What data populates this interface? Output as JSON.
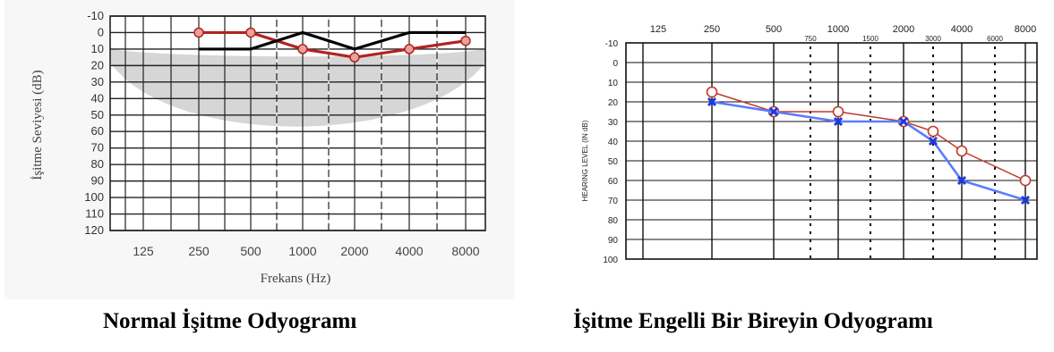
{
  "captions": {
    "left": "Normal İşitme Odyogramı",
    "right": "İşitme Engelli Bir Bireyin Odyogramı"
  },
  "chart_data": [
    {
      "type": "line",
      "title": "",
      "xlabel": "Frekans (Hz)",
      "ylabel": "İşitme Seviyesi (dB)",
      "x_ticks": [
        "125",
        "250",
        "500",
        "1000",
        "2000",
        "4000",
        "8000"
      ],
      "y_ticks": [
        "-10",
        "0",
        "10",
        "20",
        "30",
        "40",
        "50",
        "60",
        "70",
        "80",
        "90",
        "100",
        "110",
        "120"
      ],
      "ylim": [
        -10,
        120
      ],
      "y_inverted": true,
      "normal_range_band": true,
      "grid": true,
      "series": [
        {
          "color": "#b22222",
          "marker": "circle",
          "x": [
            "250",
            "500",
            "1000",
            "2000",
            "4000",
            "8000"
          ],
          "values": [
            0,
            0,
            10,
            15,
            10,
            5
          ]
        },
        {
          "color": "#000000",
          "marker": "none",
          "x": [
            "250",
            "500",
            "1000",
            "2000",
            "4000",
            "8000"
          ],
          "values": [
            10,
            10,
            0,
            10,
            0,
            0
          ]
        }
      ]
    },
    {
      "type": "line",
      "title": "",
      "xlabel": "",
      "ylabel": "HEARING LEVEL (IN dB)",
      "x_ticks": [
        "125",
        "250",
        "500",
        "1000",
        "2000",
        "4000",
        "8000"
      ],
      "x_minor_ticks": [
        "750",
        "1500",
        "3000",
        "6000"
      ],
      "y_ticks": [
        "-10",
        "0",
        "10",
        "20",
        "30",
        "40",
        "50",
        "60",
        "70",
        "80",
        "90",
        "100"
      ],
      "ylim": [
        -10,
        100
      ],
      "y_inverted": true,
      "grid": true,
      "series": [
        {
          "color": "#c0392b",
          "marker": "open-circle",
          "x": [
            "250",
            "500",
            "1000",
            "2000",
            "3000",
            "4000",
            "8000"
          ],
          "values": [
            15,
            25,
            25,
            30,
            35,
            45,
            60
          ]
        },
        {
          "color": "#5a7cff",
          "marker": "x",
          "x": [
            "250",
            "500",
            "1000",
            "2000",
            "3000",
            "4000",
            "8000"
          ],
          "values": [
            20,
            25,
            30,
            30,
            40,
            60,
            70
          ]
        }
      ]
    }
  ]
}
